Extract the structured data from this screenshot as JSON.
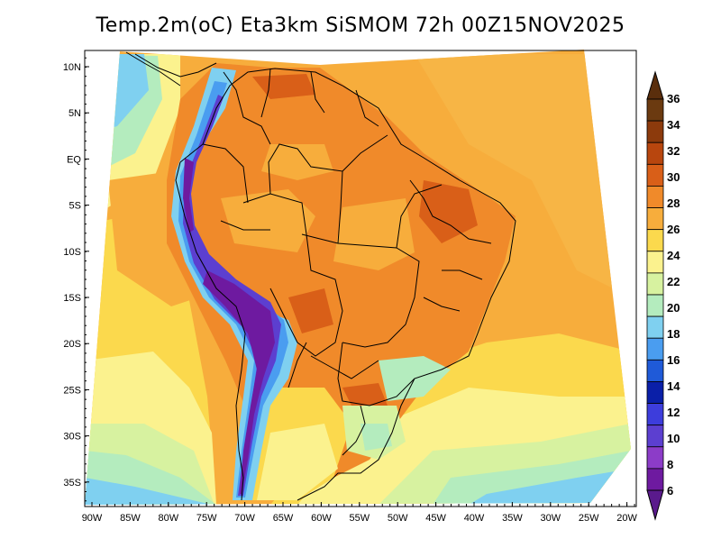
{
  "title": "Temp.2m(oC) Eta3km SiSMOM 72h 00Z15NOV2025",
  "map": {
    "lat_labels": [
      "10N",
      "5N",
      "EQ",
      "5S",
      "10S",
      "15S",
      "20S",
      "25S",
      "30S",
      "35S"
    ],
    "lon_labels": [
      "90W",
      "85W",
      "80W",
      "75W",
      "70W",
      "65W",
      "60W",
      "55W",
      "50W",
      "45W",
      "40W",
      "35W",
      "30W",
      "25W",
      "20W"
    ],
    "lat_range": [
      -38,
      11
    ],
    "lon_range": [
      -91,
      -19
    ]
  },
  "colorbar": {
    "labels": [
      "36",
      "34",
      "32",
      "30",
      "28",
      "26",
      "24",
      "22",
      "20",
      "18",
      "16",
      "14",
      "12",
      "10",
      "8",
      "6"
    ],
    "colors": [
      "#6b3a10",
      "#8c3a0c",
      "#b8460e",
      "#d95f18",
      "#f08a2a",
      "#f7ad3c",
      "#fbd94d",
      "#fbf28e",
      "#d7f2a0",
      "#b4ecbe",
      "#7fd0f0",
      "#4a9df0",
      "#1f5ad8",
      "#0a1fa8",
      "#3d3ddc",
      "#5c3fd0",
      "#8c3cc8",
      "#6e1aa0"
    ],
    "top_color": "#5a2e0c",
    "bottom_color": "#5a1a8c"
  }
}
